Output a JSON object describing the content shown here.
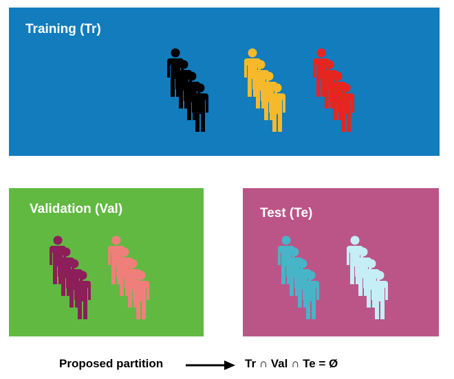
{
  "panels": {
    "training": {
      "label": "Training (Tr)",
      "color": "#127cbd",
      "groups": [
        "#000000",
        "#f6b92c",
        "#e52620"
      ]
    },
    "validation": {
      "label": "Validation (Val)",
      "color": "#61b942",
      "groups": [
        "#8c1e5a",
        "#f07f7b"
      ]
    },
    "test": {
      "label": "Test (Te)",
      "color": "#bb5588",
      "groups": [
        "#48b4c8",
        "#c6eef6"
      ]
    }
  },
  "footer": {
    "left_label": "Proposed partition",
    "arrow_icon": "right-arrow-icon",
    "formula": "Tr ∩ Val ∩ Te = Ø"
  }
}
